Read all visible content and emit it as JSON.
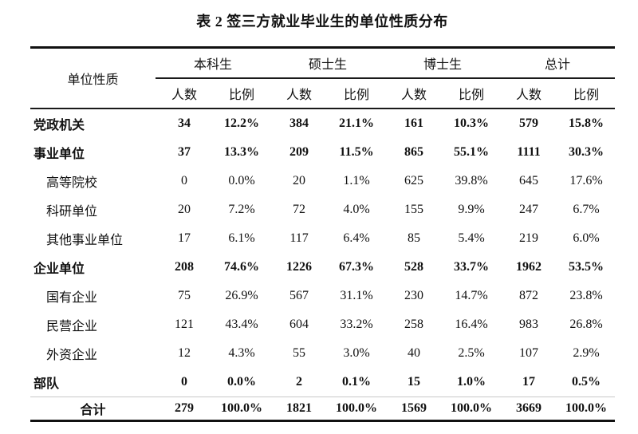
{
  "title": "表 2 签三方就业毕业生的单位性质分布",
  "colors": {
    "background": "#ffffff",
    "text": "#111111",
    "heavy_rule": "#111111",
    "thin_rule": "#1a1a1a",
    "light_rule": "#c9c9c9"
  },
  "table": {
    "row_header": "单位性质",
    "groups": [
      {
        "label": "本科生"
      },
      {
        "label": "硕士生"
      },
      {
        "label": "博士生"
      },
      {
        "label": "总计"
      }
    ],
    "subheaders": {
      "count": "人数",
      "ratio": "比例"
    },
    "rows": [
      {
        "label": "党政机关",
        "level": 0,
        "bold": true,
        "total": false,
        "values": [
          "34",
          "12.2%",
          "384",
          "21.1%",
          "161",
          "10.3%",
          "579",
          "15.8%"
        ]
      },
      {
        "label": "事业单位",
        "level": 0,
        "bold": true,
        "total": false,
        "values": [
          "37",
          "13.3%",
          "209",
          "11.5%",
          "865",
          "55.1%",
          "1111",
          "30.3%"
        ]
      },
      {
        "label": "高等院校",
        "level": 1,
        "bold": false,
        "total": false,
        "values": [
          "0",
          "0.0%",
          "20",
          "1.1%",
          "625",
          "39.8%",
          "645",
          "17.6%"
        ]
      },
      {
        "label": "科研单位",
        "level": 1,
        "bold": false,
        "total": false,
        "values": [
          "20",
          "7.2%",
          "72",
          "4.0%",
          "155",
          "9.9%",
          "247",
          "6.7%"
        ]
      },
      {
        "label": "其他事业单位",
        "level": 1,
        "bold": false,
        "total": false,
        "values": [
          "17",
          "6.1%",
          "117",
          "6.4%",
          "85",
          "5.4%",
          "219",
          "6.0%"
        ]
      },
      {
        "label": "企业单位",
        "level": 0,
        "bold": true,
        "total": false,
        "values": [
          "208",
          "74.6%",
          "1226",
          "67.3%",
          "528",
          "33.7%",
          "1962",
          "53.5%"
        ]
      },
      {
        "label": "国有企业",
        "level": 1,
        "bold": false,
        "total": false,
        "values": [
          "75",
          "26.9%",
          "567",
          "31.1%",
          "230",
          "14.7%",
          "872",
          "23.8%"
        ]
      },
      {
        "label": "民营企业",
        "level": 1,
        "bold": false,
        "total": false,
        "values": [
          "121",
          "43.4%",
          "604",
          "33.2%",
          "258",
          "16.4%",
          "983",
          "26.8%"
        ]
      },
      {
        "label": "外资企业",
        "level": 1,
        "bold": false,
        "total": false,
        "values": [
          "12",
          "4.3%",
          "55",
          "3.0%",
          "40",
          "2.5%",
          "107",
          "2.9%"
        ]
      },
      {
        "label": "部队",
        "level": 0,
        "bold": true,
        "total": false,
        "values": [
          "0",
          "0.0%",
          "2",
          "0.1%",
          "15",
          "1.0%",
          "17",
          "0.5%"
        ]
      },
      {
        "label": "合计",
        "level": 2,
        "bold": true,
        "total": true,
        "values": [
          "279",
          "100.0%",
          "1821",
          "100.0%",
          "1569",
          "100.0%",
          "3669",
          "100.0%"
        ]
      }
    ]
  }
}
